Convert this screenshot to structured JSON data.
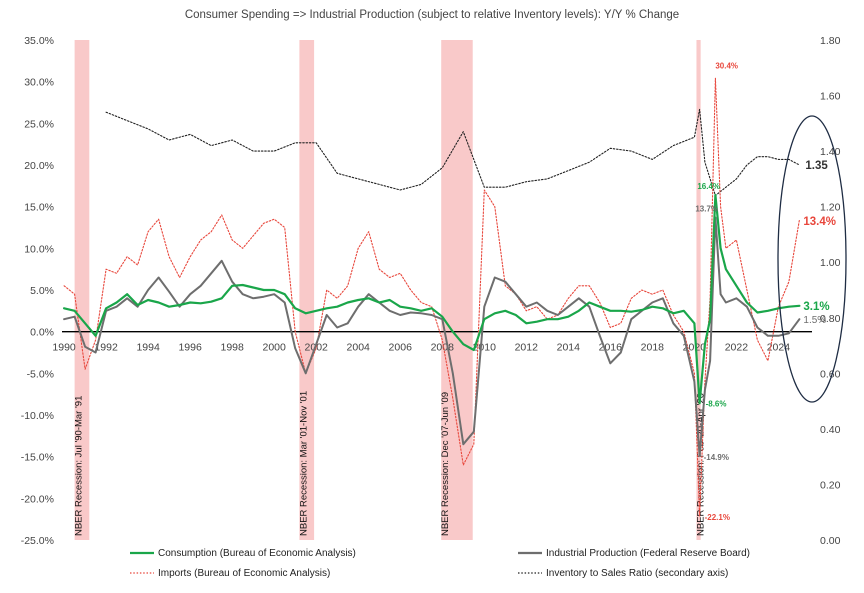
{
  "chart_data": {
    "type": "line",
    "title": "Consumer Spending => Industrial Production (subject to relative Inventory levels): Y/Y % Change",
    "x_ticks": [
      "1990",
      "1992",
      "1994",
      "1996",
      "1998",
      "2000",
      "2002",
      "2004",
      "2006",
      "2008",
      "2010",
      "2012",
      "2014",
      "2016",
      "2018",
      "2020",
      "2022",
      "2024"
    ],
    "xlim": [
      1989.9,
      2025.6
    ],
    "y_left_ticks": [
      "35.0%",
      "30.0%",
      "25.0%",
      "20.0%",
      "15.0%",
      "10.0%",
      "5.0%",
      "0.0%",
      "-5.0%",
      "-10.0%",
      "-15.0%",
      "-20.0%",
      "-25.0%"
    ],
    "ylim_left": [
      -25,
      35
    ],
    "y_right_ticks": [
      "1.80",
      "1.60",
      "1.40",
      "1.20",
      "1.00",
      "0.80",
      "0.60",
      "0.40",
      "0.20",
      "0.00"
    ],
    "ylim_right": [
      0,
      1.8
    ],
    "grid": false,
    "recessions": [
      {
        "start": 1990.5,
        "end": 1991.2,
        "label": "NBER Recession: Jul '90-Mar '91"
      },
      {
        "start": 2001.2,
        "end": 2001.9,
        "label": "NBER Recession: Mar '01-Nov '01"
      },
      {
        "start": 2007.95,
        "end": 2009.45,
        "label": "NBER Recession: Dec '07-Jun '09"
      },
      {
        "start": 2020.1,
        "end": 2020.3,
        "label": "NBER Recession: Feb '20-Apr '20"
      }
    ],
    "series": [
      {
        "name": "Consumption (Bureau of Economic Analysis)",
        "axis": "left",
        "color": "#1aa64a",
        "style": "solid",
        "x": [
          1990,
          1990.5,
          1991,
          1991.5,
          1992,
          1992.5,
          1993,
          1993.5,
          1994,
          1994.5,
          1995,
          1995.5,
          1996,
          1996.5,
          1997,
          1997.5,
          1998,
          1998.5,
          1999,
          1999.5,
          2000,
          2000.5,
          2001,
          2001.5,
          2002,
          2002.5,
          2003,
          2003.5,
          2004,
          2004.5,
          2005,
          2005.5,
          2006,
          2006.5,
          2007,
          2007.5,
          2008,
          2008.5,
          2009,
          2009.5,
          2010,
          2010.5,
          2011,
          2011.5,
          2012,
          2012.5,
          2013,
          2013.5,
          2014,
          2014.5,
          2015,
          2015.5,
          2016,
          2016.5,
          2017,
          2017.5,
          2018,
          2018.5,
          2019,
          2019.5,
          2020,
          2020.25,
          2020.5,
          2020.75,
          2021,
          2021.25,
          2021.5,
          2022,
          2022.5,
          2023,
          2023.5,
          2024,
          2024.5,
          2025
        ],
        "values": [
          2.8,
          2.5,
          1.0,
          -0.5,
          2.8,
          3.5,
          4.5,
          3.2,
          3.8,
          3.5,
          3.0,
          3.2,
          3.5,
          3.4,
          3.6,
          4.0,
          5.5,
          5.6,
          5.3,
          5.0,
          5.0,
          4.5,
          2.8,
          2.2,
          2.5,
          2.8,
          3.0,
          3.5,
          3.8,
          4.0,
          3.5,
          3.8,
          3.0,
          2.8,
          2.5,
          2.8,
          1.8,
          0.0,
          -1.5,
          -2.2,
          1.5,
          2.2,
          2.5,
          2.0,
          1.0,
          1.2,
          1.5,
          1.5,
          1.8,
          2.5,
          3.5,
          3.0,
          2.5,
          2.5,
          2.4,
          2.6,
          3.0,
          2.8,
          2.2,
          2.5,
          1.0,
          -8.6,
          -1.5,
          1.5,
          16.4,
          10.0,
          7.5,
          5.5,
          3.5,
          2.3,
          2.5,
          2.8,
          3.0,
          3.1
        ]
      },
      {
        "name": "Industrial Production (Federal Reserve Board)",
        "axis": "left",
        "color": "#6e6e6e",
        "style": "solid",
        "x": [
          1990,
          1990.5,
          1991,
          1991.5,
          1992,
          1992.5,
          1993,
          1993.5,
          1994,
          1994.5,
          1995,
          1995.5,
          1996,
          1996.5,
          1997,
          1997.5,
          1998,
          1998.5,
          1999,
          1999.5,
          2000,
          2000.5,
          2001,
          2001.5,
          2002,
          2002.5,
          2003,
          2003.5,
          2004,
          2004.5,
          2005,
          2005.5,
          2006,
          2006.5,
          2007,
          2007.5,
          2008,
          2008.5,
          2009,
          2009.5,
          2010,
          2010.5,
          2011,
          2011.5,
          2012,
          2012.5,
          2013,
          2013.5,
          2014,
          2014.5,
          2015,
          2015.5,
          2016,
          2016.5,
          2017,
          2017.5,
          2018,
          2018.5,
          2019,
          2019.5,
          2020,
          2020.25,
          2020.5,
          2020.75,
          2021,
          2021.25,
          2021.5,
          2022,
          2022.5,
          2023,
          2023.5,
          2024,
          2024.5,
          2025
        ],
        "values": [
          1.5,
          1.8,
          -1.8,
          -2.5,
          2.5,
          3.0,
          4.0,
          3.0,
          5.0,
          6.5,
          4.8,
          3.0,
          4.5,
          5.5,
          7.0,
          8.5,
          6.0,
          4.5,
          4.0,
          4.2,
          4.5,
          3.5,
          -2.0,
          -5.0,
          -1.5,
          2.0,
          0.5,
          1.0,
          3.0,
          4.5,
          3.5,
          2.5,
          2.0,
          2.3,
          2.2,
          2.0,
          1.5,
          -5.0,
          -13.5,
          -12.0,
          3.0,
          6.5,
          6.0,
          4.5,
          3.0,
          3.5,
          2.5,
          2.0,
          3.0,
          4.0,
          3.0,
          -0.5,
          -3.8,
          -2.5,
          1.5,
          2.5,
          3.5,
          4.0,
          1.0,
          -0.5,
          -6.0,
          -14.9,
          -7.0,
          -3.5,
          13.7,
          4.5,
          3.5,
          4.0,
          3.0,
          0.5,
          -0.5,
          -0.5,
          -0.2,
          1.5
        ]
      },
      {
        "name": "Imports (Bureau of Economic Analysis)",
        "axis": "left",
        "color": "#e8473c",
        "style": "dotted",
        "x": [
          1990,
          1990.5,
          1991,
          1991.5,
          1992,
          1992.5,
          1993,
          1993.5,
          1994,
          1994.5,
          1995,
          1995.5,
          1996,
          1996.5,
          1997,
          1997.5,
          1998,
          1998.5,
          1999,
          1999.5,
          2000,
          2000.5,
          2001,
          2001.5,
          2002,
          2002.5,
          2003,
          2003.5,
          2004,
          2004.5,
          2005,
          2005.5,
          2006,
          2006.5,
          2007,
          2007.5,
          2008,
          2008.5,
          2009,
          2009.5,
          2010,
          2010.5,
          2011,
          2011.5,
          2012,
          2012.5,
          2013,
          2013.5,
          2014,
          2014.5,
          2015,
          2015.5,
          2016,
          2016.5,
          2017,
          2017.5,
          2018,
          2018.5,
          2019,
          2019.5,
          2020,
          2020.25,
          2020.5,
          2020.75,
          2021,
          2021.25,
          2021.5,
          2022,
          2022.5,
          2023,
          2023.5,
          2024,
          2024.5,
          2025
        ],
        "values": [
          5.5,
          4.5,
          -4.5,
          -1.0,
          7.5,
          7.0,
          9.0,
          8.0,
          12.0,
          13.5,
          9.0,
          6.5,
          9.0,
          11.0,
          12.0,
          14.0,
          11.0,
          10.0,
          11.5,
          13.0,
          13.5,
          12.5,
          0.0,
          -5.0,
          -2.0,
          5.0,
          4.0,
          5.5,
          10.0,
          12.0,
          7.5,
          6.5,
          7.0,
          5.0,
          3.5,
          3.0,
          -1.0,
          -8.0,
          -16.0,
          -13.5,
          17.0,
          15.0,
          5.5,
          4.5,
          2.5,
          3.0,
          1.5,
          2.0,
          4.0,
          5.5,
          5.5,
          3.5,
          0.5,
          1.0,
          4.0,
          5.0,
          4.5,
          5.0,
          2.0,
          0.0,
          -5.0,
          -22.1,
          -6.0,
          4.0,
          30.4,
          15.0,
          10.0,
          11.0,
          5.0,
          -1.0,
          -3.5,
          3.0,
          6.0,
          13.4
        ]
      },
      {
        "name": "Inventory to Sales Ratio (secondary axis)",
        "axis": "right",
        "color": "#222222",
        "style": "dotted",
        "x": [
          1992,
          1993,
          1994,
          1995,
          1996,
          1997,
          1998,
          1999,
          2000,
          2001,
          2002,
          2003,
          2004,
          2005,
          2006,
          2007,
          2008,
          2009,
          2010,
          2011,
          2012,
          2013,
          2014,
          2015,
          2016,
          2017,
          2018,
          2019,
          2020,
          2020.25,
          2020.5,
          2021,
          2021.5,
          2022,
          2022.5,
          2023,
          2023.5,
          2024,
          2024.5,
          2025
        ],
        "values": [
          1.54,
          1.51,
          1.48,
          1.44,
          1.46,
          1.42,
          1.44,
          1.4,
          1.4,
          1.43,
          1.43,
          1.32,
          1.3,
          1.28,
          1.26,
          1.28,
          1.34,
          1.47,
          1.27,
          1.27,
          1.29,
          1.3,
          1.33,
          1.36,
          1.41,
          1.4,
          1.37,
          1.42,
          1.45,
          1.55,
          1.36,
          1.24,
          1.27,
          1.3,
          1.35,
          1.38,
          1.38,
          1.37,
          1.37,
          1.35
        ]
      }
    ],
    "annotations": [
      {
        "text": "30.4%",
        "x": 2021.0,
        "y": 30.4,
        "color": "#e8473c"
      },
      {
        "text": "16.4%",
        "x": 2021.0,
        "y": 16.4,
        "color": "#1aa64a"
      },
      {
        "text": "13.7%",
        "x": 2021.0,
        "y": 13.7,
        "color": "#6e6e6e"
      },
      {
        "text": "-8.6%",
        "x": 2020.25,
        "y": -8.6,
        "color": "#1aa64a"
      },
      {
        "text": "-14.9%",
        "x": 2020.25,
        "y": -14.9,
        "color": "#6e6e6e"
      },
      {
        "text": "-22.1%",
        "x": 2020.25,
        "y": -22.1,
        "color": "#e8473c"
      },
      {
        "text": "3.1%",
        "x": 2025,
        "y": 3.1,
        "color": "#1aa64a"
      },
      {
        "text": "1.5%",
        "x": 2025,
        "y": 1.5,
        "color": "#6e6e6e"
      },
      {
        "text": "13.4%",
        "x": 2025,
        "y": 13.4,
        "color": "#e8473c"
      },
      {
        "text": "1.35",
        "x": 2025,
        "y": 1.35,
        "axis": "right",
        "color": "#333333"
      }
    ]
  }
}
